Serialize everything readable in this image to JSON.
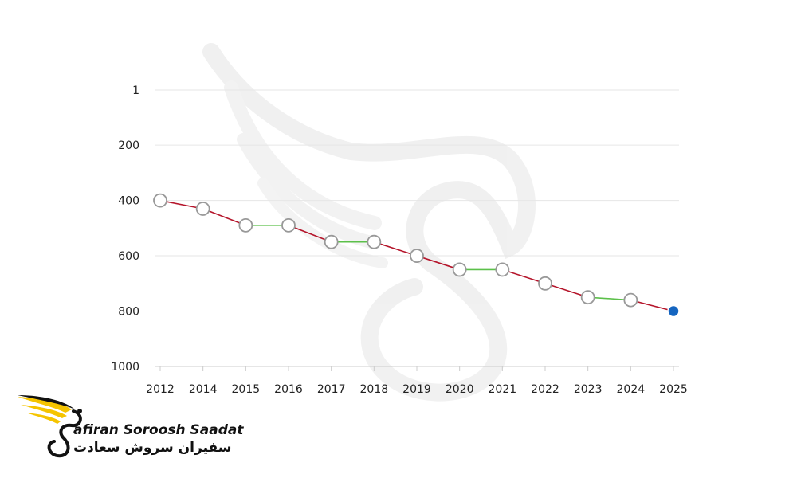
{
  "brand": {
    "name_en": "afiran Soroosh Saadat",
    "name_fa": "سفیران سروش سعادت"
  },
  "colors": {
    "decrease": "#b5152b",
    "flat": "#5cc04a",
    "marker_fill": "#ffffff",
    "marker_stroke": "#999999",
    "highlight": "#1565c0",
    "grid": "#e6e6e6",
    "logo_yellow": "#f5c400"
  },
  "chart_data": {
    "type": "line",
    "title": "",
    "xlabel": "",
    "ylabel": "",
    "y_inverted": true,
    "ylim": [
      1,
      1000
    ],
    "y_ticks": [
      1,
      200,
      400,
      600,
      800,
      1000
    ],
    "grid": true,
    "categories": [
      "2012",
      "2014",
      "2015",
      "2016",
      "2017",
      "2018",
      "2019",
      "2020",
      "2021",
      "2022",
      "2023",
      "2024",
      "2025"
    ],
    "values": [
      400,
      430,
      490,
      490,
      550,
      550,
      600,
      650,
      650,
      700,
      750,
      760,
      800
    ],
    "highlight_point": "2025"
  }
}
